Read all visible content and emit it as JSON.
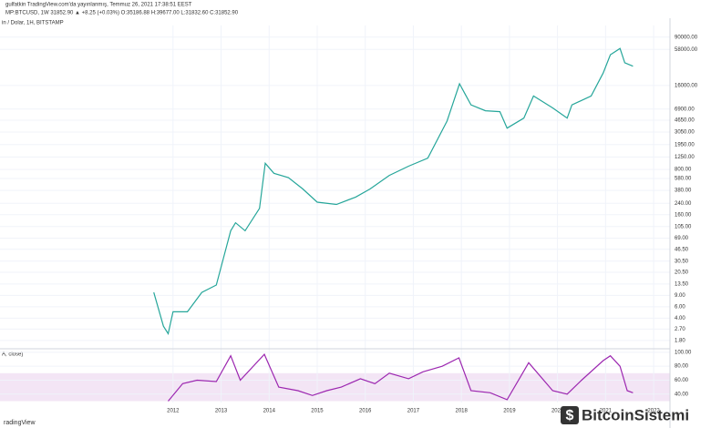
{
  "header": {
    "line1": "gulfatkin TradingView.com'da yayınlanmış, Temmuz 26, 2021 17:38:51 EEST",
    "line2": "MP:BTCUSD, 1W  31852.90 ▲ +8.25 (+0.03%) O:35186.88 H:39677.00 L:31832.60 C:31852.90"
  },
  "watermark": "BitcoinSistemi",
  "footer": "radingView",
  "chart_data": [
    {
      "type": "line",
      "title": "in / Dolar, 1H, BITSTAMP",
      "color": "#26a69a",
      "log_scale": true,
      "grid": true,
      "x": [
        2011.6,
        2011.8,
        2011.9,
        2012.0,
        2012.3,
        2012.6,
        2012.9,
        2013.2,
        2013.3,
        2013.5,
        2013.8,
        2013.92,
        2014.1,
        2014.4,
        2014.7,
        2015.0,
        2015.4,
        2015.8,
        2016.1,
        2016.5,
        2016.9,
        2017.3,
        2017.7,
        2017.96,
        2018.2,
        2018.5,
        2018.8,
        2018.95,
        2019.3,
        2019.5,
        2019.9,
        2020.2,
        2020.3,
        2020.7,
        2020.95,
        2021.1,
        2021.3,
        2021.4,
        2021.57
      ],
      "values": [
        10,
        3,
        2.3,
        5,
        5,
        10,
        13,
        90,
        120,
        90,
        200,
        1000,
        700,
        600,
        400,
        250,
        230,
        300,
        400,
        650,
        900,
        1200,
        4500,
        17000,
        8000,
        6500,
        6300,
        3500,
        5000,
        11000,
        7200,
        5000,
        8000,
        11000,
        25000,
        48000,
        60000,
        36000,
        31852.9
      ],
      "xlim": [
        2008.4,
        2022.34
      ],
      "xticks": [
        2012,
        2013,
        2014,
        2015,
        2016,
        2017,
        2018,
        2019,
        2020,
        2021,
        2022
      ],
      "ylim": [
        1.34,
        136000
      ],
      "yticks": [
        {
          "value": 90000,
          "label": "90000.00"
        },
        {
          "value": 58000,
          "label": "58000.00"
        },
        {
          "value": 16000,
          "label": "16000.00"
        },
        {
          "value": 6900,
          "label": "6900.00"
        },
        {
          "value": 4650,
          "label": "4650.00"
        },
        {
          "value": 3050,
          "label": "3050.00"
        },
        {
          "value": 1950,
          "label": "1950.00"
        },
        {
          "value": 1250,
          "label": "1250.00"
        },
        {
          "value": 800,
          "label": "800.00"
        },
        {
          "value": 580,
          "label": "580.00"
        },
        {
          "value": 380,
          "label": "380.00"
        },
        {
          "value": 240,
          "label": "240.00"
        },
        {
          "value": 160,
          "label": "160.00"
        },
        {
          "value": 105,
          "label": "105.00"
        },
        {
          "value": 69,
          "label": "69.00"
        },
        {
          "value": 46.5,
          "label": "46.50"
        },
        {
          "value": 30.5,
          "label": "30.50"
        },
        {
          "value": 20.5,
          "label": "20.50"
        },
        {
          "value": 13.5,
          "label": "13.50"
        },
        {
          "value": 9,
          "label": "9.00"
        },
        {
          "value": 6,
          "label": "6.00"
        },
        {
          "value": 4,
          "label": "4.00"
        },
        {
          "value": 2.7,
          "label": "2.70"
        },
        {
          "value": 1.8,
          "label": "1.80"
        }
      ]
    },
    {
      "type": "line",
      "title": "A, close)",
      "color": "#9c27b0",
      "grid": true,
      "x": [
        2011.9,
        2012.2,
        2012.5,
        2012.9,
        2013.2,
        2013.4,
        2013.9,
        2014.2,
        2014.6,
        2014.9,
        2015.2,
        2015.5,
        2015.9,
        2016.2,
        2016.5,
        2016.9,
        2017.2,
        2017.6,
        2017.95,
        2018.2,
        2018.6,
        2018.95,
        2019.4,
        2019.9,
        2020.2,
        2020.5,
        2020.95,
        2021.1,
        2021.3,
        2021.45,
        2021.57
      ],
      "values": [
        30,
        55,
        60,
        58,
        95,
        60,
        97,
        50,
        45,
        38,
        45,
        50,
        62,
        55,
        70,
        62,
        72,
        80,
        92,
        45,
        42,
        32,
        85,
        45,
        40,
        60,
        88,
        95,
        80,
        45,
        42
      ],
      "band": [
        30,
        70
      ],
      "xlim": [
        2008.4,
        2022.34
      ],
      "xticks": [
        2012,
        2013,
        2014,
        2015,
        2016,
        2017,
        2018,
        2019,
        2020,
        2021,
        2022
      ],
      "ylim": [
        28,
        105
      ],
      "yticks": [
        {
          "value": 100,
          "label": "100.00"
        },
        {
          "value": 80,
          "label": "80.00"
        },
        {
          "value": 60,
          "label": "60.00"
        },
        {
          "value": 40,
          "label": "40.00"
        }
      ]
    }
  ]
}
